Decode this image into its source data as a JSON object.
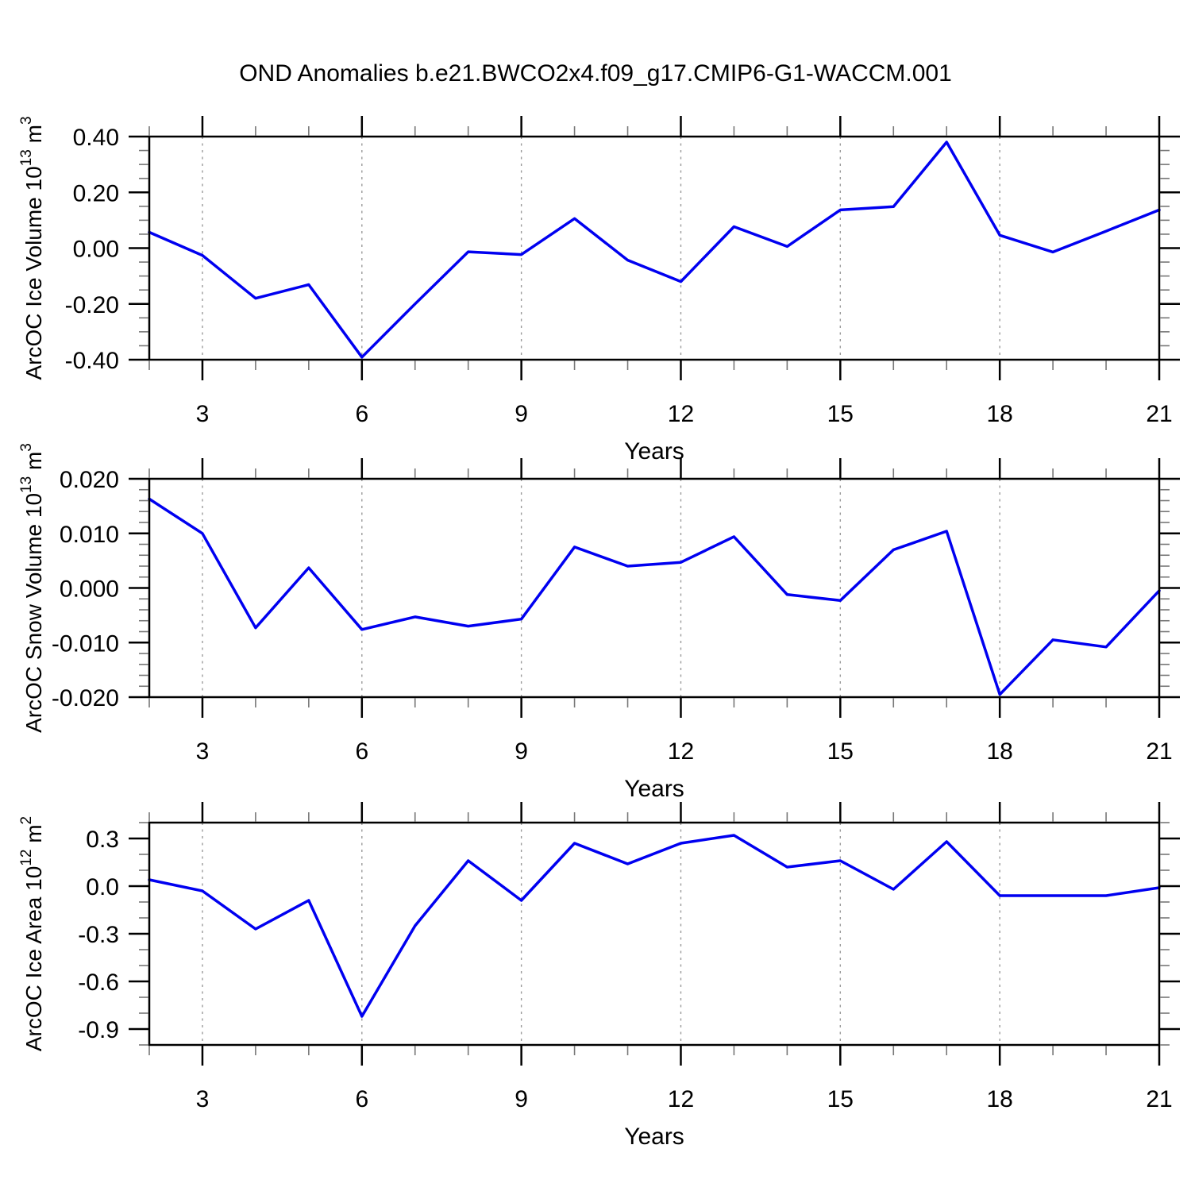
{
  "title": "OND Anomalies b.e21.BWCO2x4.f09_g17.CMIP6-G1-WACCM.001",
  "colors": {
    "series": "#0000f0",
    "grid": "#9a9a9a",
    "frame": "#000000",
    "minor_tick": "#777777",
    "text": "#000000"
  },
  "x_axis": {
    "label": "Years",
    "range": [
      2,
      21
    ],
    "major_ticks": [
      3,
      6,
      9,
      12,
      15,
      18,
      21
    ],
    "major_tick_labels": [
      "3",
      "6",
      "9",
      "12",
      "15",
      "18",
      "21"
    ],
    "minor_step": 1,
    "grid_lines": [
      3,
      6,
      9,
      12,
      15,
      18
    ]
  },
  "chart_data": [
    {
      "id": "arcoc-ice-volume",
      "type": "line",
      "ylabel": {
        "name": "ArcOC Ice Volume",
        "factor": "10",
        "factor_exp": "13",
        "unit": "m",
        "unit_exp": "3"
      },
      "xlabel": "Years",
      "x": [
        2,
        3,
        4,
        5,
        6,
        7,
        8,
        9,
        10,
        11,
        12,
        13,
        14,
        15,
        16,
        17,
        18,
        19,
        20,
        21
      ],
      "values": [
        0.057,
        -0.026,
        -0.18,
        -0.131,
        -0.391,
        -0.2,
        -0.013,
        -0.023,
        0.106,
        -0.043,
        -0.12,
        0.077,
        0.006,
        0.137,
        0.149,
        0.38,
        0.046,
        -0.014,
        0.061,
        0.137
      ],
      "ylim": [
        -0.4,
        0.4
      ],
      "ytick_values": [
        0.4,
        0.2,
        0.0,
        -0.2,
        -0.4
      ],
      "ytick_labels": [
        "0.40",
        "0.20",
        "0.00",
        "-0.20",
        "-0.40"
      ],
      "ytick_minor_step": 0.05
    },
    {
      "id": "arcoc-snow-volume",
      "type": "line",
      "ylabel": {
        "name": "ArcOC Snow Volume",
        "factor": "10",
        "factor_exp": "13",
        "unit": "m",
        "unit_exp": "3"
      },
      "xlabel": "Years",
      "x": [
        2,
        3,
        4,
        5,
        6,
        7,
        8,
        9,
        10,
        11,
        12,
        13,
        14,
        15,
        16,
        17,
        18,
        19,
        20,
        21
      ],
      "values": [
        0.0163,
        0.01,
        -0.0073,
        0.0037,
        -0.0076,
        -0.0053,
        -0.007,
        -0.0057,
        0.0075,
        0.004,
        0.0047,
        0.0094,
        -0.0012,
        -0.0023,
        0.007,
        0.0104,
        -0.0195,
        -0.0095,
        -0.0108,
        -0.0005
      ],
      "ylim": [
        -0.02,
        0.02
      ],
      "ytick_values": [
        0.02,
        0.01,
        0.0,
        -0.01,
        -0.02
      ],
      "ytick_labels": [
        "0.020",
        "0.010",
        "0.000",
        "-0.010",
        "-0.020"
      ],
      "ytick_minor_step": 0.002
    },
    {
      "id": "arcoc-ice-area",
      "type": "line",
      "ylabel": {
        "name": "ArcOC Ice Area",
        "factor": "10",
        "factor_exp": "12",
        "unit": "m",
        "unit_exp": "2"
      },
      "xlabel": "Years",
      "x": [
        2,
        3,
        4,
        5,
        6,
        7,
        8,
        9,
        10,
        11,
        12,
        13,
        14,
        15,
        16,
        17,
        18,
        19,
        20,
        21
      ],
      "values": [
        0.04,
        -0.03,
        -0.27,
        -0.09,
        -0.82,
        -0.25,
        0.16,
        -0.09,
        0.27,
        0.14,
        0.27,
        0.32,
        0.12,
        0.16,
        -0.02,
        0.28,
        -0.06,
        -0.06,
        -0.06,
        -0.01
      ],
      "ylim": [
        -1.0,
        0.4
      ],
      "ytick_values": [
        0.3,
        0.0,
        -0.3,
        -0.6,
        -0.9
      ],
      "ytick_labels": [
        "0.3",
        "0.0",
        "-0.3",
        "-0.6",
        "-0.9"
      ],
      "ytick_minor_step": 0.1
    }
  ]
}
